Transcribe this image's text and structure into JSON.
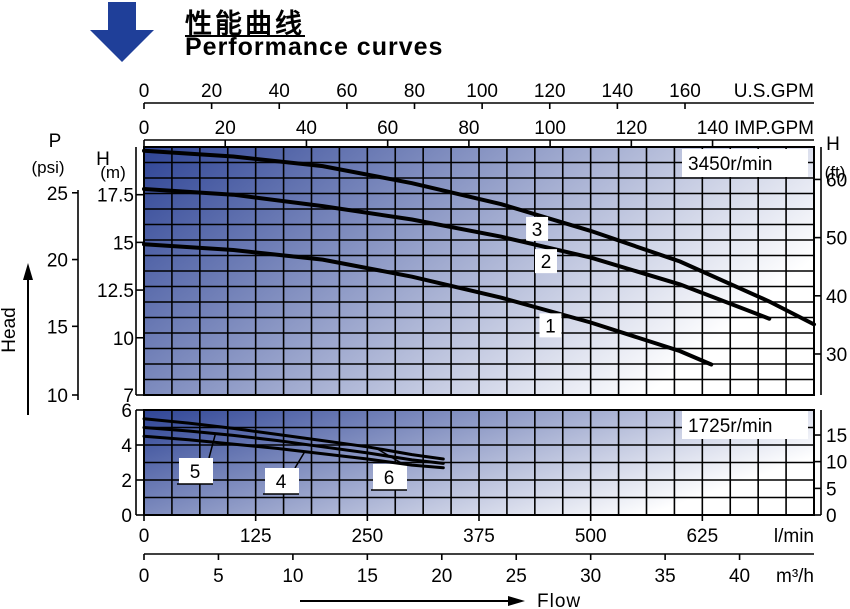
{
  "header": {
    "title_cn": "性能曲线",
    "title_en": "Performance curves",
    "arrow_color": "#1f3f99"
  },
  "colors": {
    "gradient_dark": "#2f4596",
    "gradient_light": "#ffffff",
    "curve": "#000000"
  },
  "chart_data": [
    {
      "type": "line",
      "title": "3450r/min",
      "x_unit": "l/min",
      "xlim": [
        0,
        750
      ],
      "ylim": [
        7,
        20
      ],
      "ylabel": "H (m)",
      "y_ticks": [
        7,
        10,
        12.5,
        15,
        17.5
      ],
      "y_ticks_labels": [
        "7",
        "10",
        "12.5",
        "15",
        "17.5"
      ],
      "psi_label": "P",
      "psi_unit": "(psi)",
      "psi_ticks": [
        {
          "label": "25",
          "m": 17.6
        },
        {
          "label": "20",
          "m": 14.1
        },
        {
          "label": "15",
          "m": 10.6
        },
        {
          "label": "10",
          "m": 7.0
        }
      ],
      "ft_label": "H",
      "ft_unit": "(ft)",
      "ft_ticks": [
        {
          "label": "60",
          "m": 18.3
        },
        {
          "label": "50",
          "m": 15.25
        },
        {
          "label": "40",
          "m": 12.2
        },
        {
          "label": "30",
          "m": 9.15
        }
      ],
      "series": [
        {
          "name": "3",
          "x": [
            0,
            100,
            200,
            300,
            400,
            500,
            600,
            700,
            750
          ],
          "y": [
            19.8,
            19.5,
            19.0,
            18.1,
            17.0,
            15.6,
            14.0,
            11.9,
            10.7
          ],
          "label_x": 440
        },
        {
          "name": "2",
          "x": [
            0,
            100,
            200,
            300,
            400,
            500,
            600,
            700
          ],
          "y": [
            17.8,
            17.5,
            16.9,
            16.2,
            15.3,
            14.2,
            12.8,
            11.0
          ],
          "label_x": 450
        },
        {
          "name": "1",
          "x": [
            0,
            100,
            200,
            300,
            400,
            500,
            600,
            635
          ],
          "y": [
            14.9,
            14.6,
            14.1,
            13.2,
            12.1,
            10.8,
            9.3,
            8.6
          ],
          "label_x": 455
        }
      ]
    },
    {
      "type": "line",
      "title": "1725r/min",
      "x_unit": "l/min",
      "xlim": [
        0,
        750
      ],
      "ylim": [
        0,
        6
      ],
      "y_ticks": [
        0,
        2,
        4,
        6
      ],
      "y_ticks_labels": [
        "0",
        "2",
        "4",
        "6"
      ],
      "ft_ticks": [
        {
          "label": "15",
          "m": 4.57
        },
        {
          "label": "10",
          "m": 3.05
        },
        {
          "label": "5",
          "m": 1.52
        },
        {
          "label": "0",
          "m": 0
        }
      ],
      "series": [
        {
          "name": "6",
          "x": [
            0,
            50,
            100,
            150,
            200,
            250,
            300,
            335
          ],
          "y": [
            5.5,
            5.25,
            4.95,
            4.6,
            4.25,
            3.9,
            3.45,
            3.2
          ],
          "label_x": 260
        },
        {
          "name": "5",
          "x": [
            0,
            50,
            100,
            150,
            200,
            250,
            300,
            335
          ],
          "y": [
            5.0,
            4.8,
            4.55,
            4.25,
            3.9,
            3.55,
            3.15,
            2.95
          ],
          "label_x": 80
        },
        {
          "name": "4",
          "x": [
            0,
            50,
            100,
            150,
            200,
            250,
            300,
            335
          ],
          "y": [
            4.5,
            4.3,
            4.05,
            3.8,
            3.5,
            3.2,
            2.85,
            2.7
          ],
          "label_x": 180
        }
      ]
    }
  ],
  "x_axes": {
    "usgpm": {
      "label": "U.S.GPM",
      "ticks": [
        "0",
        "20",
        "40",
        "60",
        "80",
        "100",
        "120",
        "140",
        "160"
      ],
      "lpm_per": 3.785
    },
    "impgpm": {
      "label": "IMP.GPM",
      "ticks": [
        "0",
        "20",
        "40",
        "60",
        "80",
        "100",
        "120",
        "140"
      ],
      "lpm_per": 4.546
    },
    "lmin": {
      "label": "l/min",
      "ticks": [
        "0",
        "125",
        "250",
        "375",
        "500",
        "625"
      ]
    },
    "m3h": {
      "label": "m³/h",
      "ticks": [
        "0",
        "5",
        "10",
        "15",
        "20",
        "25",
        "30",
        "35",
        "40"
      ],
      "lpm_per": 16.667
    }
  },
  "axis_titles": {
    "left": "Head",
    "bottom": "Flow"
  }
}
